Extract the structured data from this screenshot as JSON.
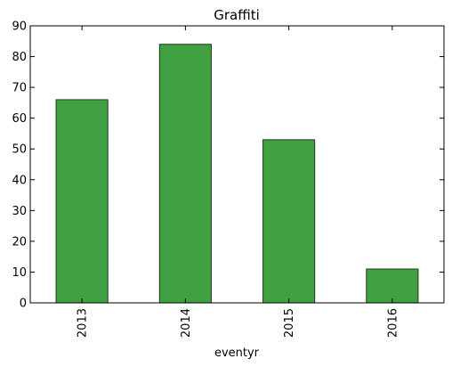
{
  "chart_data": {
    "type": "bar",
    "title": "Graffiti",
    "xlabel": "eventyr",
    "ylabel": "",
    "categories": [
      "2013",
      "2014",
      "2015",
      "2016"
    ],
    "values": [
      66,
      84,
      53,
      11
    ],
    "ylim": [
      0,
      90
    ],
    "yticks": [
      "0",
      "10",
      "20",
      "30",
      "40",
      "50",
      "60",
      "70",
      "80",
      "90"
    ],
    "grid": false,
    "bar_color": "#41a041",
    "edge_color": "#1f3a1f"
  }
}
